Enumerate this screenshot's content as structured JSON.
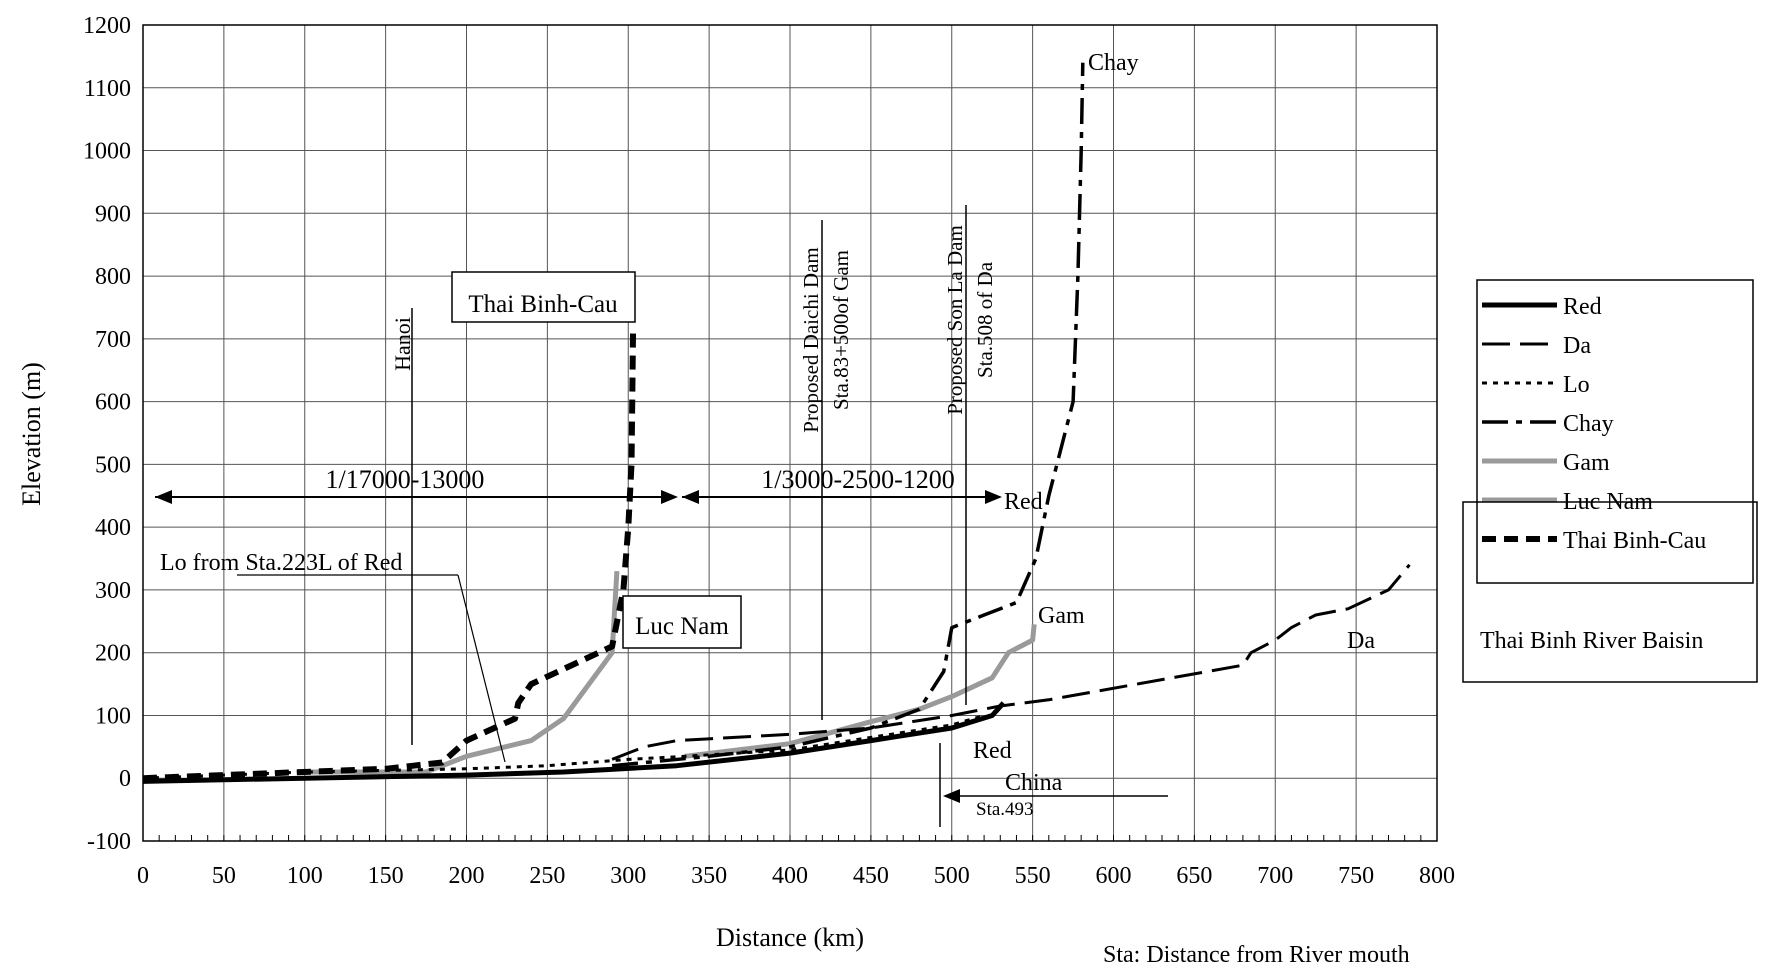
{
  "chart_data": {
    "type": "line",
    "xlabel": "Distance (km)",
    "ylabel": "Elevation (m)",
    "xlim": [
      0,
      800
    ],
    "ylim": [
      -100,
      1200
    ],
    "xticks": [
      0,
      50,
      100,
      150,
      200,
      250,
      300,
      350,
      400,
      450,
      500,
      550,
      600,
      650,
      700,
      750,
      800
    ],
    "yticks": [
      -100,
      0,
      100,
      200,
      300,
      400,
      500,
      600,
      700,
      800,
      900,
      1000,
      1100,
      1200
    ],
    "grid": true,
    "legend_position": "right",
    "series": [
      {
        "name": "Red",
        "style": "solid-thick",
        "points": [
          [
            0,
            -5
          ],
          [
            100,
            0
          ],
          [
            200,
            5
          ],
          [
            260,
            10
          ],
          [
            330,
            20
          ],
          [
            400,
            40
          ],
          [
            450,
            60
          ],
          [
            500,
            80
          ],
          [
            525,
            100
          ],
          [
            532,
            120
          ]
        ]
      },
      {
        "name": "Da",
        "style": "long-dash",
        "points": [
          [
            290,
            30
          ],
          [
            310,
            50
          ],
          [
            330,
            60
          ],
          [
            400,
            70
          ],
          [
            450,
            80
          ],
          [
            500,
            100
          ],
          [
            530,
            115
          ],
          [
            560,
            125
          ],
          [
            680,
            180
          ],
          [
            685,
            200
          ],
          [
            700,
            220
          ],
          [
            710,
            240
          ],
          [
            725,
            260
          ],
          [
            745,
            270
          ],
          [
            770,
            300
          ],
          [
            783,
            340
          ]
        ]
      },
      {
        "name": "Lo",
        "style": "dotted",
        "points": [
          [
            0,
            0
          ],
          [
            100,
            10
          ],
          [
            200,
            15
          ],
          [
            250,
            20
          ],
          [
            300,
            30
          ],
          [
            335,
            35
          ],
          [
            400,
            45
          ],
          [
            450,
            65
          ],
          [
            500,
            85
          ],
          [
            520,
            100
          ]
        ]
      },
      {
        "name": "Chay",
        "style": "dash-dot",
        "points": [
          [
            290,
            20
          ],
          [
            350,
            35
          ],
          [
            400,
            50
          ],
          [
            450,
            80
          ],
          [
            480,
            110
          ],
          [
            495,
            170
          ],
          [
            500,
            240
          ],
          [
            520,
            260
          ],
          [
            540,
            280
          ],
          [
            552,
            350
          ],
          [
            560,
            450
          ],
          [
            570,
            550
          ],
          [
            575,
            600
          ],
          [
            578,
            800
          ],
          [
            580,
            1000
          ],
          [
            581,
            1140
          ]
        ]
      },
      {
        "name": "Gam",
        "style": "gray-thick",
        "points": [
          [
            335,
            35
          ],
          [
            400,
            55
          ],
          [
            450,
            90
          ],
          [
            480,
            110
          ],
          [
            500,
            130
          ],
          [
            525,
            160
          ],
          [
            535,
            200
          ],
          [
            550,
            220
          ],
          [
            551,
            245
          ]
        ]
      },
      {
        "name": "Luc Nam",
        "style": "gray-thick",
        "points": [
          [
            95,
            10
          ],
          [
            150,
            10
          ],
          [
            175,
            10
          ],
          [
            200,
            35
          ],
          [
            240,
            60
          ],
          [
            260,
            95
          ],
          [
            290,
            200
          ],
          [
            293,
            330
          ]
        ]
      },
      {
        "name": "Thai Binh-Cau",
        "style": "heavy-dash",
        "points": [
          [
            0,
            0
          ],
          [
            150,
            15
          ],
          [
            185,
            25
          ],
          [
            200,
            60
          ],
          [
            230,
            95
          ],
          [
            232,
            120
          ],
          [
            240,
            150
          ],
          [
            290,
            210
          ],
          [
            297,
            300
          ],
          [
            300,
            400
          ],
          [
            302,
            500
          ],
          [
            303,
            720
          ]
        ]
      }
    ],
    "annotations": {
      "hanoi": "Hanoi",
      "thai_binh_cau_box": "Thai Binh-Cau",
      "dam1_a": "Proposed Daichi Dam",
      "dam1_b": "Sta.83+500of Gam",
      "dam2_a": "Proposed Son La Dam",
      "dam2_b": "Sta.508  of Da",
      "scale1": "1/17000-13000",
      "scale2": "1/3000-2500-1200",
      "red_top": "Red",
      "lo_from": "Lo from Sta.223L of Red",
      "luc_nam_box": "Luc Nam",
      "gam": "Gam",
      "chay": "Chay",
      "da": "Da",
      "red_low": "Red",
      "china": "China",
      "sta493": "Sta.493",
      "sta_note": "Sta: Distance from River mouth",
      "basin": "Thai Binh River Baisin"
    },
    "colors": {
      "black": "#000000",
      "gray": "#9a9a9a"
    }
  }
}
